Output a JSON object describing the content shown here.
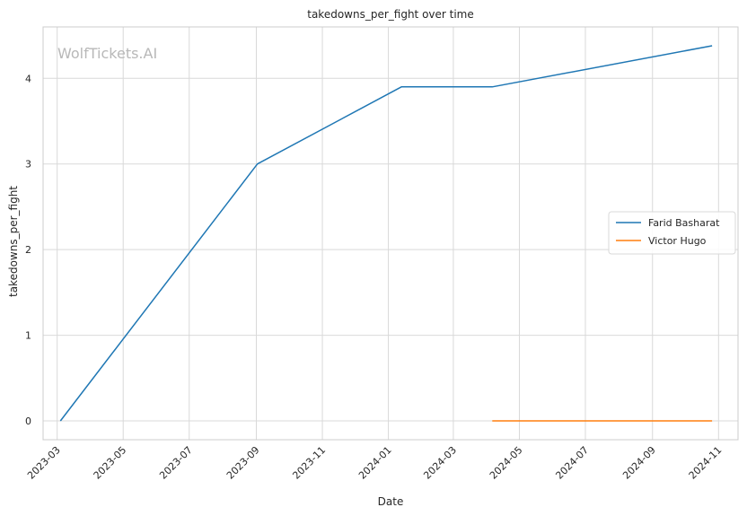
{
  "watermark": "WolfTickets.AI",
  "chart_data": {
    "type": "line",
    "title": "takedowns_per_fight over time",
    "xlabel": "Date",
    "ylabel": "takedowns_per_fight",
    "x_ticks": [
      "2023-03",
      "2023-05",
      "2023-07",
      "2023-09",
      "2023-11",
      "2024-01",
      "2024-03",
      "2024-05",
      "2024-07",
      "2024-09",
      "2024-11"
    ],
    "y_ticks": [
      0,
      1,
      2,
      3,
      4
    ],
    "xlim": [
      "2023-02-16",
      "2024-11-19"
    ],
    "ylim": [
      -0.22,
      4.6
    ],
    "grid": true,
    "legend_position": "center-right",
    "series": [
      {
        "name": "Farid Basharat",
        "color": "#1f77b4",
        "points": [
          {
            "x": "2023-03-04",
            "y": 0
          },
          {
            "x": "2023-09-02",
            "y": 3
          },
          {
            "x": "2024-01-13",
            "y": 3.9
          },
          {
            "x": "2024-04-06",
            "y": 3.9
          },
          {
            "x": "2024-10-26",
            "y": 4.38
          }
        ]
      },
      {
        "name": "Victor Hugo",
        "color": "#ff7f0e",
        "points": [
          {
            "x": "2024-04-06",
            "y": 0
          },
          {
            "x": "2024-10-26",
            "y": 0
          }
        ]
      }
    ]
  }
}
